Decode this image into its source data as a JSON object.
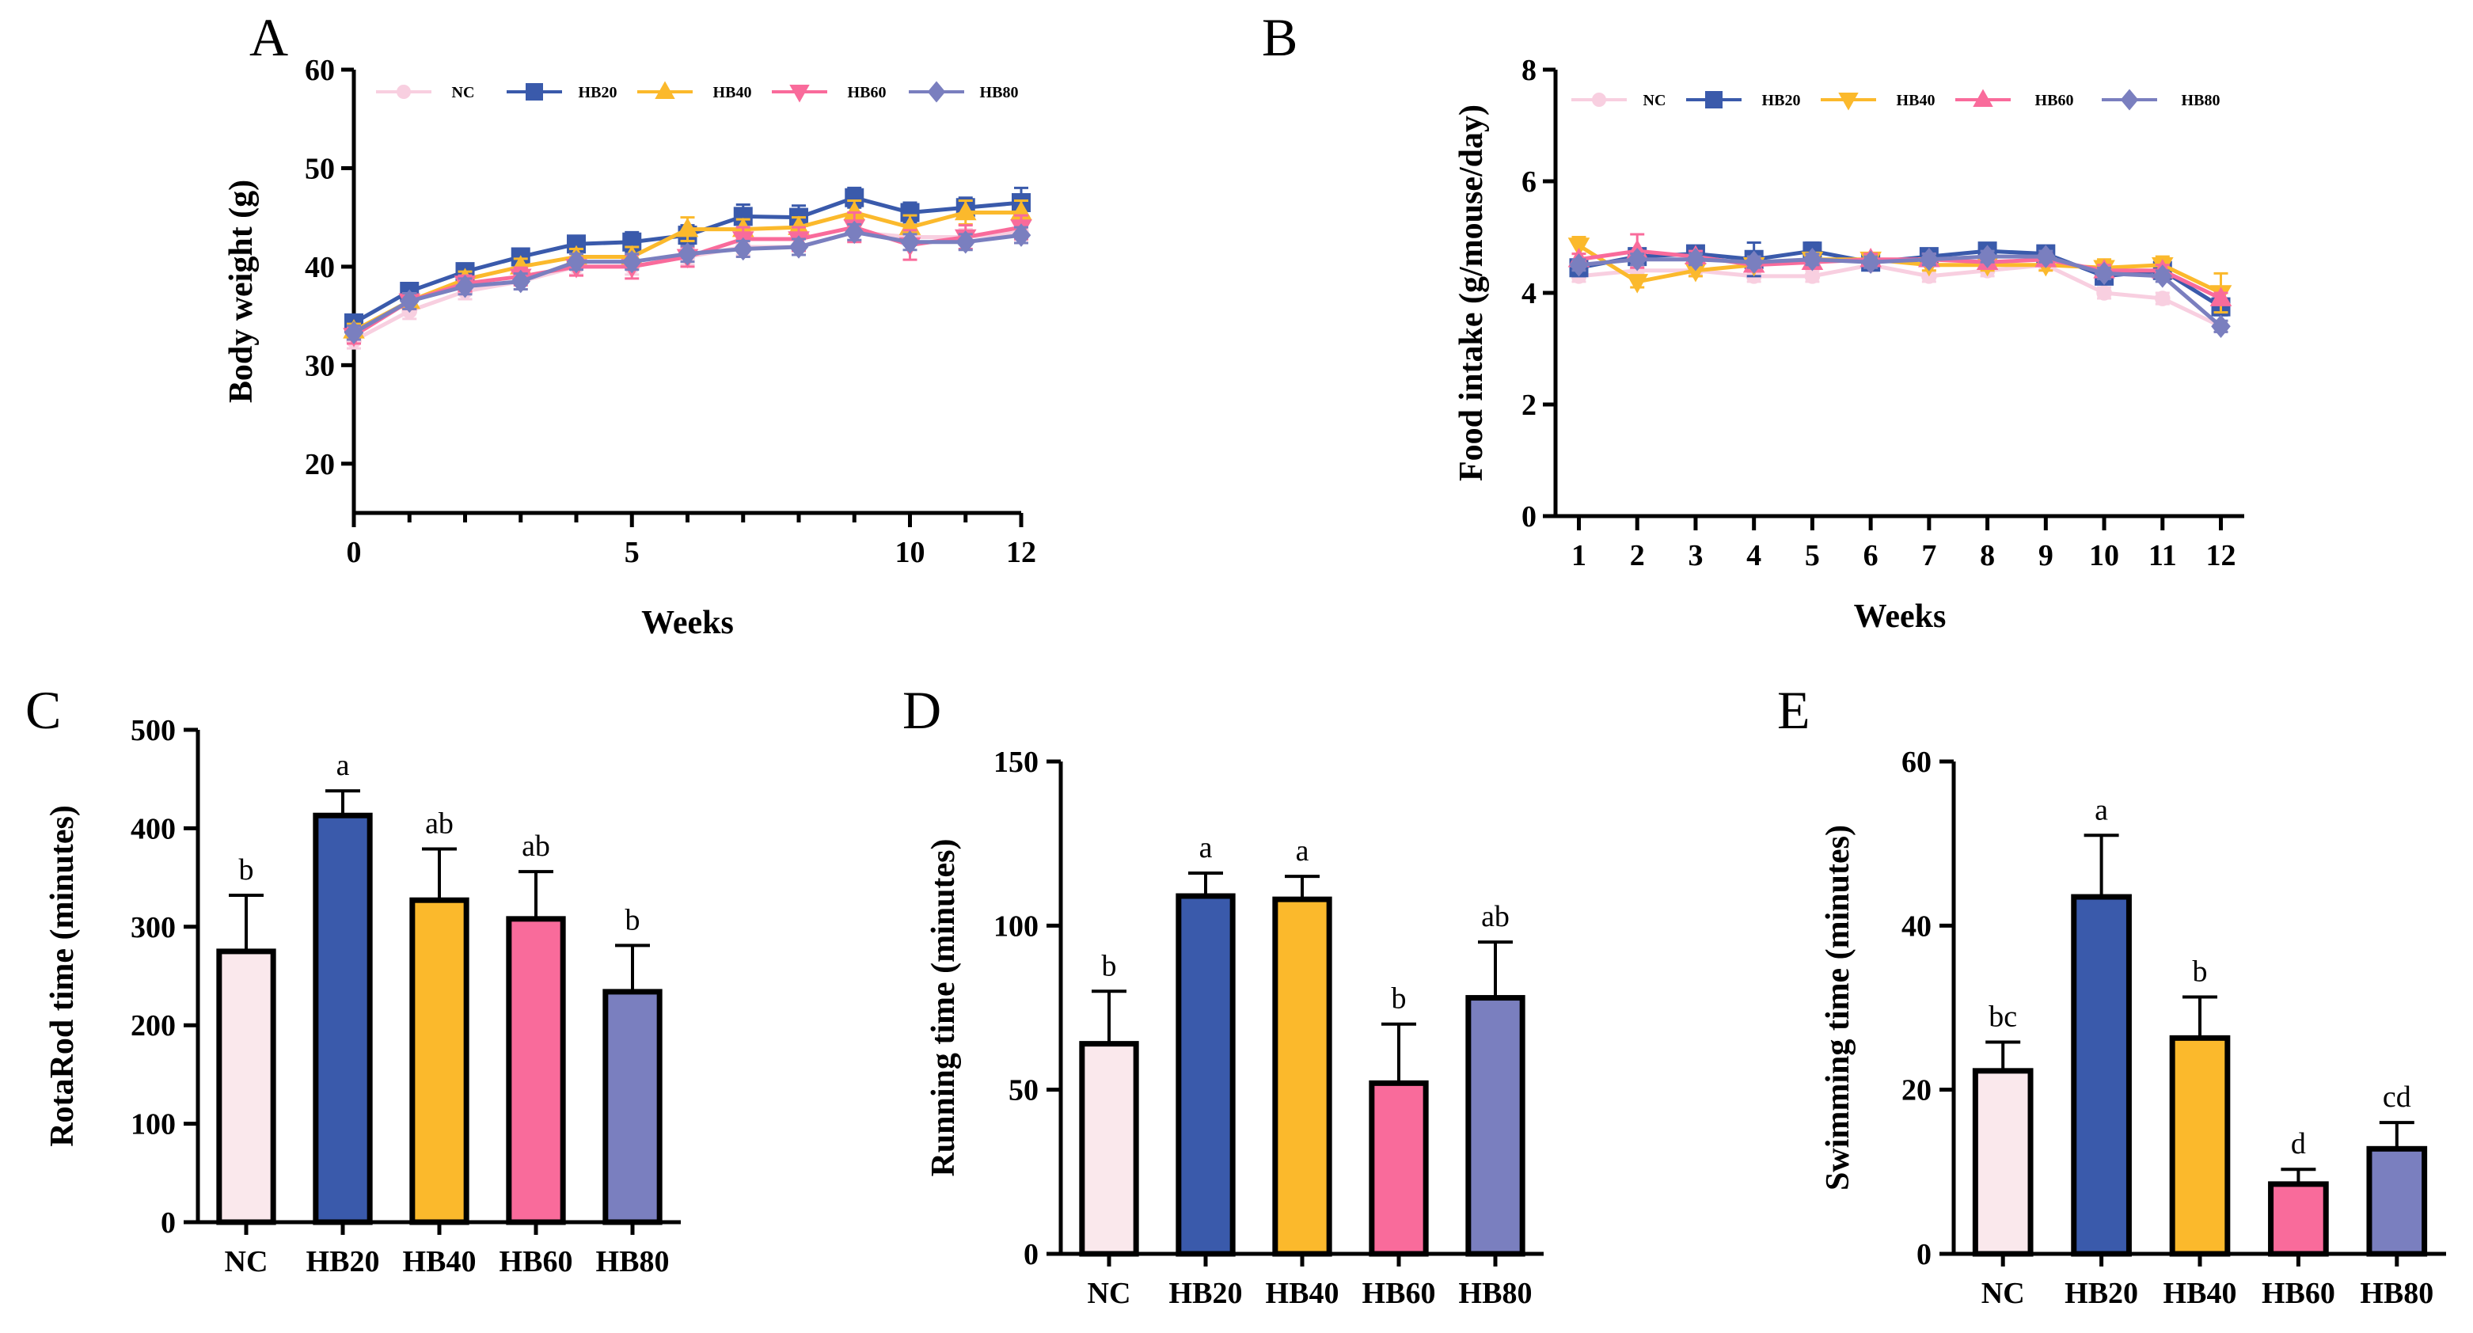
{
  "chart_data": [
    {
      "id": "A",
      "type": "line",
      "panel_label": "A",
      "xlabel": "Weeks",
      "ylabel": "Body weight (g)",
      "xlim": [
        0,
        12
      ],
      "ylim": [
        15,
        60
      ],
      "xticks": [
        0,
        5,
        10,
        12
      ],
      "yticks": [
        20,
        30,
        40,
        50,
        60
      ],
      "x": [
        0,
        1,
        2,
        3,
        4,
        5,
        6,
        7,
        8,
        9,
        10,
        11,
        12
      ],
      "legend_position": "top",
      "series": [
        {
          "name": "NC",
          "marker": "circle",
          "color": "#f8cfe0",
          "values": [
            32.5,
            35.5,
            37.5,
            38.5,
            40.0,
            40.0,
            41.0,
            42.0,
            42.0,
            43.5,
            43.0,
            43.0,
            43.5
          ],
          "errors": [
            0.8,
            0.8,
            0.8,
            0.8,
            0.8,
            0.8,
            0.8,
            0.8,
            0.8,
            0.8,
            0.8,
            0.8,
            0.8
          ]
        },
        {
          "name": "HB20",
          "marker": "square",
          "color": "#3a5aab",
          "values": [
            34.3,
            37.5,
            39.5,
            41.0,
            42.3,
            42.5,
            43.2,
            45.1,
            45.0,
            47.0,
            45.5,
            46.0,
            46.5
          ],
          "errors": [
            0.7,
            0.8,
            0.8,
            0.8,
            0.8,
            1.0,
            1.0,
            1.2,
            1.2,
            1.0,
            1.0,
            1.0,
            1.5
          ]
        },
        {
          "name": "HB40",
          "marker": "triangle-up",
          "color": "#fbb92c",
          "values": [
            33.5,
            36.5,
            38.7,
            40.0,
            41.0,
            41.0,
            43.8,
            43.8,
            44.0,
            45.5,
            44.0,
            45.5,
            45.5
          ],
          "errors": [
            0.7,
            0.8,
            0.8,
            0.8,
            0.8,
            1.0,
            1.2,
            1.0,
            1.0,
            1.2,
            1.2,
            1.2,
            1.2
          ]
        },
        {
          "name": "HB60",
          "marker": "triangle-down",
          "color": "#f96b9b",
          "values": [
            33.0,
            36.5,
            38.3,
            39.0,
            40.0,
            40.0,
            41.0,
            42.8,
            42.8,
            44.0,
            42.2,
            43.0,
            44.0
          ],
          "errors": [
            0.8,
            0.8,
            0.8,
            0.9,
            0.9,
            1.2,
            1.0,
            1.2,
            1.2,
            1.5,
            1.5,
            1.2,
            1.2
          ]
        },
        {
          "name": "HB80",
          "marker": "diamond",
          "color": "#7a7fbf",
          "values": [
            33.3,
            36.5,
            38.0,
            38.5,
            40.5,
            40.5,
            41.3,
            41.8,
            42.0,
            43.5,
            42.5,
            42.5,
            43.2
          ],
          "errors": [
            0.7,
            0.8,
            0.8,
            0.8,
            0.8,
            0.8,
            0.8,
            0.8,
            0.8,
            0.8,
            0.8,
            0.8,
            0.8
          ]
        }
      ]
    },
    {
      "id": "B",
      "type": "line",
      "panel_label": "B",
      "xlabel": "Weeks",
      "ylabel": "Food intake (g/mouse/day)",
      "xlim": [
        0.6,
        12.4
      ],
      "ylim": [
        0,
        8
      ],
      "xticks": [
        1,
        2,
        3,
        4,
        5,
        6,
        7,
        8,
        9,
        10,
        11,
        12
      ],
      "yticks": [
        0,
        2,
        4,
        6,
        8
      ],
      "x": [
        1,
        2,
        3,
        4,
        5,
        6,
        7,
        8,
        9,
        10,
        11,
        12
      ],
      "legend_position": "top",
      "series": [
        {
          "name": "NC",
          "marker": "circle",
          "color": "#f8cfe0",
          "values": [
            4.3,
            4.4,
            4.4,
            4.3,
            4.3,
            4.5,
            4.3,
            4.4,
            4.5,
            4.0,
            3.9,
            3.4
          ],
          "errors": [
            0.1,
            0.1,
            0.1,
            0.1,
            0.1,
            0.1,
            0.1,
            0.1,
            0.1,
            0.1,
            0.1,
            0.1
          ]
        },
        {
          "name": "HB20",
          "marker": "square",
          "color": "#3a5aab",
          "values": [
            4.45,
            4.65,
            4.7,
            4.6,
            4.75,
            4.55,
            4.65,
            4.75,
            4.7,
            4.3,
            4.4,
            3.75
          ],
          "errors": [
            0.15,
            0.1,
            0.1,
            0.3,
            0.15,
            0.1,
            0.1,
            0.1,
            0.1,
            0.1,
            0.1,
            0.15
          ]
        },
        {
          "name": "HB40",
          "marker": "triangle-down",
          "color": "#fbb92c",
          "values": [
            4.85,
            4.2,
            4.4,
            4.5,
            4.6,
            4.6,
            4.5,
            4.5,
            4.5,
            4.45,
            4.5,
            4.0
          ],
          "errors": [
            0.15,
            0.1,
            0.1,
            0.1,
            0.1,
            0.1,
            0.1,
            0.1,
            0.1,
            0.15,
            0.15,
            0.35
          ]
        },
        {
          "name": "HB60",
          "marker": "triangle-up",
          "color": "#f96b9b",
          "values": [
            4.6,
            4.75,
            4.65,
            4.5,
            4.55,
            4.6,
            4.6,
            4.55,
            4.6,
            4.4,
            4.4,
            3.9
          ],
          "errors": [
            0.1,
            0.3,
            0.1,
            0.1,
            0.1,
            0.1,
            0.1,
            0.1,
            0.1,
            0.1,
            0.1,
            0.1
          ]
        },
        {
          "name": "HB80",
          "marker": "diamond",
          "color": "#7a7fbf",
          "values": [
            4.5,
            4.6,
            4.6,
            4.55,
            4.6,
            4.55,
            4.6,
            4.65,
            4.65,
            4.35,
            4.3,
            3.4
          ],
          "errors": [
            0.1,
            0.1,
            0.1,
            0.1,
            0.1,
            0.1,
            0.1,
            0.1,
            0.1,
            0.1,
            0.1,
            0.1
          ]
        }
      ]
    },
    {
      "id": "C",
      "type": "bar",
      "panel_label": "C",
      "xlabel": "",
      "ylabel": "RotaRod time (minutes)",
      "ylim": [
        0,
        500
      ],
      "yticks": [
        0,
        100,
        200,
        300,
        400,
        500
      ],
      "categories": [
        "NC",
        "HB20",
        "HB40",
        "HB60",
        "HB80"
      ],
      "colors": [
        "#fae8ec",
        "#3a5aab",
        "#fbb92c",
        "#f96b9b",
        "#7a7fbf"
      ],
      "values": [
        275,
        413,
        327,
        308,
        234
      ],
      "errors": [
        57,
        25,
        52,
        48,
        47
      ],
      "significance": [
        "b",
        "a",
        "ab",
        "ab",
        "b"
      ]
    },
    {
      "id": "D",
      "type": "bar",
      "panel_label": "D",
      "xlabel": "",
      "ylabel": "Running time (minutes)",
      "ylim": [
        0,
        150
      ],
      "yticks": [
        0,
        50,
        100,
        150
      ],
      "categories": [
        "NC",
        "HB20",
        "HB40",
        "HB60",
        "HB80"
      ],
      "colors": [
        "#fae8ec",
        "#3a5aab",
        "#fbb92c",
        "#f96b9b",
        "#7a7fbf"
      ],
      "values": [
        64,
        109,
        108,
        52,
        78
      ],
      "errors": [
        16,
        7,
        7,
        18,
        17
      ],
      "significance": [
        "b",
        "a",
        "a",
        "b",
        "ab"
      ]
    },
    {
      "id": "E",
      "type": "bar",
      "panel_label": "E",
      "xlabel": "",
      "ylabel": "Swimming time (minutes)",
      "ylim": [
        0,
        60
      ],
      "yticks": [
        0,
        20,
        40,
        60
      ],
      "categories": [
        "NC",
        "HB20",
        "HB40",
        "HB60",
        "HB80"
      ],
      "colors": [
        "#fae8ec",
        "#3a5aab",
        "#fbb92c",
        "#f96b9b",
        "#7a7fbf"
      ],
      "values": [
        22.3,
        43.5,
        26.3,
        8.5,
        12.8
      ],
      "errors": [
        3.5,
        7.5,
        5.0,
        1.8,
        3.2
      ],
      "significance": [
        "bc",
        "a",
        "b",
        "d",
        "cd"
      ]
    }
  ]
}
